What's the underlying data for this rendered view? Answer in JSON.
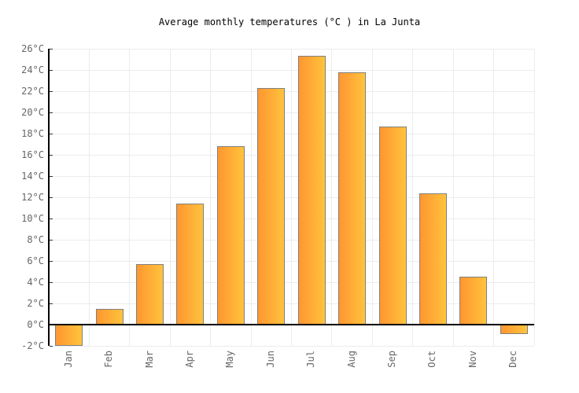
{
  "title": "Average monthly temperatures (°C ) in La Junta",
  "chart_data": {
    "type": "bar",
    "title": "Average monthly temperatures (°C ) in La Junta",
    "categories": [
      "Jan",
      "Feb",
      "Mar",
      "Apr",
      "May",
      "Jun",
      "Jul",
      "Aug",
      "Sep",
      "Oct",
      "Nov",
      "Dec"
    ],
    "values": [
      -2.0,
      1.5,
      5.7,
      11.4,
      16.8,
      22.3,
      25.3,
      23.8,
      18.7,
      12.4,
      4.5,
      -0.9
    ],
    "xlabel": "",
    "ylabel": "",
    "ylim": [
      -2,
      26
    ],
    "ytick_step": 2,
    "ytick_suffix": "°C",
    "grid": true,
    "legend": false
  },
  "style": {
    "background": "#ffffff",
    "title_color": "#000000",
    "tick_label_color": "#666666",
    "axis_color": "#000000",
    "grid_color": "#ececec",
    "bar_gradient_start": "#ff9630",
    "bar_gradient_end": "#ffc33d",
    "bar_border": "#808080"
  }
}
